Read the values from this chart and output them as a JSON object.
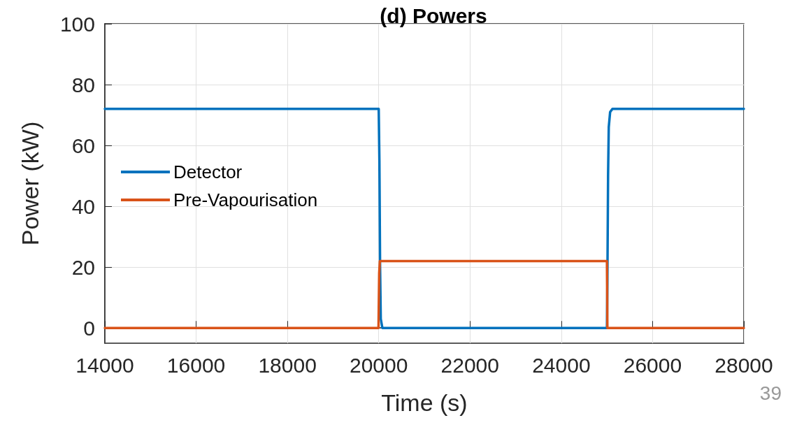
{
  "chart_data": {
    "type": "line",
    "title": "(d) Powers",
    "xlabel": "Time (s)",
    "ylabel": "Power (kW)",
    "annotations": [
      "39"
    ],
    "xlim": [
      14000,
      28000
    ],
    "xticks": [
      14000,
      16000,
      18000,
      20000,
      22000,
      24000,
      26000,
      28000
    ],
    "ylim": [
      -5,
      100
    ],
    "yticks": [
      0,
      20,
      40,
      60,
      80,
      100
    ],
    "grid": true,
    "legend": "left",
    "marker": "none",
    "line_style": "solid",
    "series": [
      {
        "name": "Detector",
        "color": "#0072bd",
        "x": [
          14000,
          20000,
          20015,
          20030,
          20045,
          20080,
          25000,
          25010,
          25025,
          25040,
          25070,
          25120,
          28000
        ],
        "values": [
          72,
          72,
          55,
          20,
          3,
          0,
          0,
          15,
          50,
          66,
          71,
          72,
          72
        ]
      },
      {
        "name": "Pre-Vapourisation",
        "color": "#d95319",
        "x": [
          14000,
          19995,
          20010,
          20025,
          25000,
          25010,
          28000
        ],
        "values": [
          0,
          0,
          18,
          22,
          22,
          0,
          0
        ]
      }
    ]
  }
}
